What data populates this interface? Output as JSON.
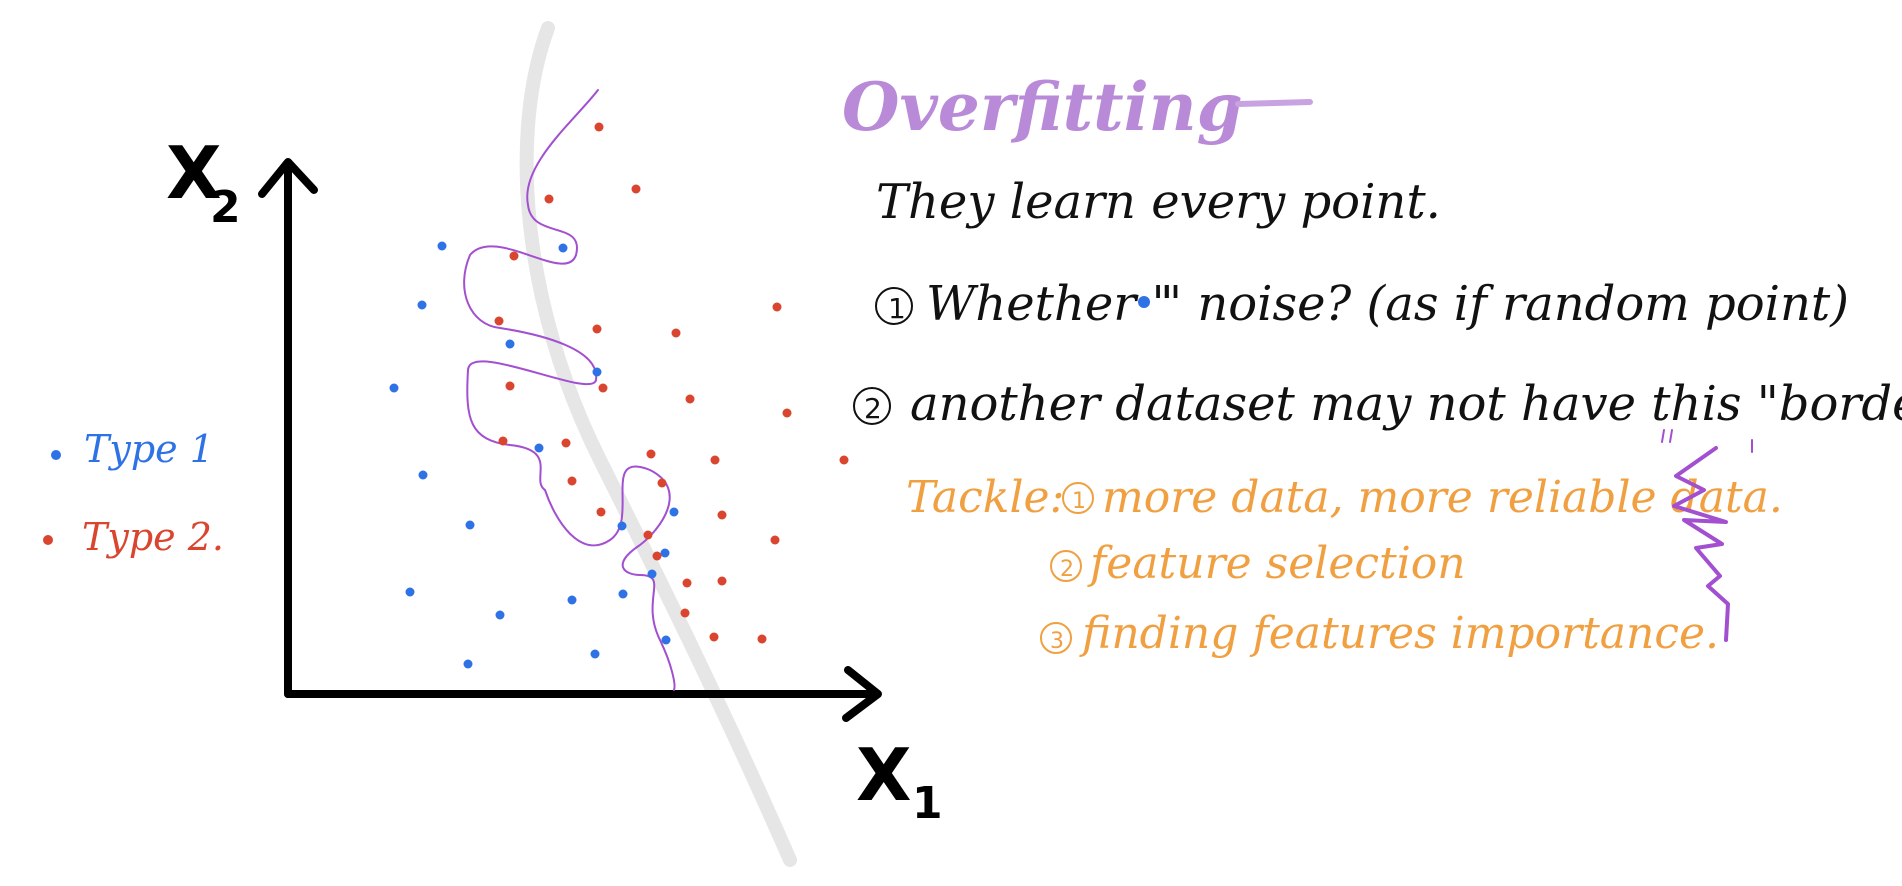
{
  "title": "Overfitting",
  "axes": {
    "y_label": "X",
    "y_sub": "2",
    "x_label": "X",
    "x_sub": "1"
  },
  "legend": [
    {
      "label": "Type 1",
      "color": "#2f72e6"
    },
    {
      "label": "Type 2.",
      "color": "#d9452f"
    }
  ],
  "notes": {
    "line1": "They learn every point.",
    "line2_num": "1",
    "line2_a": "Whether \"",
    "line2_b": "\" noise? (as if random point)",
    "line3_num": "2",
    "line3": "another dataset may not have this \"border\""
  },
  "tackle": {
    "label": "Tackle:",
    "items": [
      {
        "num": "1",
        "text": "more data, more reliable data."
      },
      {
        "num": "2",
        "text": "feature selection"
      },
      {
        "num": "3",
        "text": "finding features importance."
      }
    ]
  },
  "colors": {
    "type1": "#2f72e6",
    "type2": "#d9452f",
    "boundary": "#a24fd0",
    "title": "#b98ad8",
    "tackle": "#f0a040",
    "ink": "#111111"
  },
  "icons": [
    "blue-dot-icon",
    "red-dot-icon",
    "squiggle-icon"
  ]
}
